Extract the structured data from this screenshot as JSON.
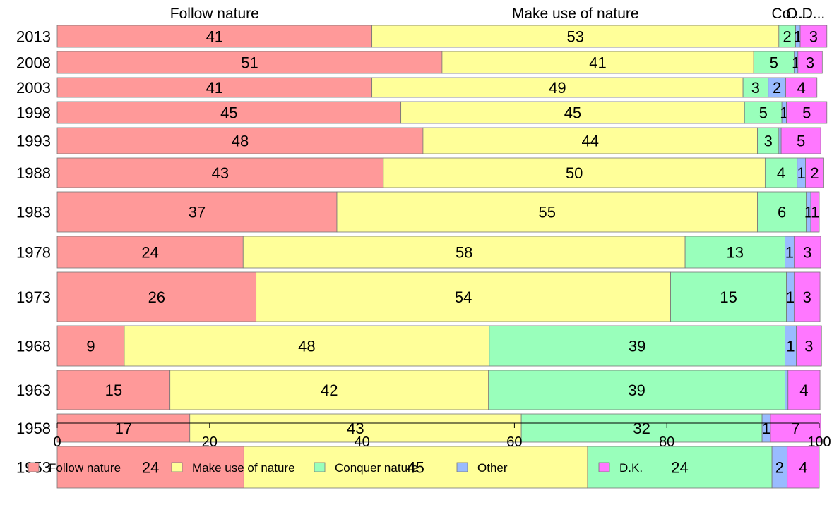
{
  "chart_data": {
    "type": "bar",
    "orientation": "horizontal",
    "stacked": true,
    "title": "",
    "xlabel": "",
    "ylabel": "",
    "xlim": [
      0,
      100
    ],
    "x_ticks": [
      "0",
      "20",
      "40",
      "60",
      "80",
      "100"
    ],
    "top_labels": [
      "Follow nature",
      "Make use of nature",
      "Co...",
      "O...",
      "D..."
    ],
    "categories": [
      "2013",
      "2008",
      "2003",
      "1998",
      "1993",
      "1988",
      "1983",
      "1978",
      "1973",
      "1968",
      "1963",
      "1958",
      "1953"
    ],
    "bar_heights": [
      31,
      31,
      28,
      31,
      37,
      42,
      57,
      45,
      70,
      57,
      56,
      40,
      59
    ],
    "series": [
      {
        "name": "Follow nature",
        "color": "#ff9999",
        "values": [
          41.3,
          50.5,
          41.3,
          45.1,
          48.0,
          42.8,
          36.7,
          24.4,
          26.1,
          8.8,
          14.8,
          17.4,
          24.5
        ]
      },
      {
        "name": "Make use of nature",
        "color": "#ffff99",
        "values": [
          53.4,
          40.9,
          48.7,
          45.1,
          43.9,
          50.1,
          55.2,
          58.0,
          54.4,
          47.9,
          41.8,
          43.5,
          45.1
        ]
      },
      {
        "name": "Conquer nature",
        "color": "#99ffbb",
        "values": [
          2.2,
          5.3,
          3.3,
          4.9,
          2.8,
          4.2,
          6.4,
          13.1,
          15.2,
          38.8,
          38.9,
          31.6,
          24.2
        ]
      },
      {
        "name": "Other",
        "color": "#99bbff",
        "values": [
          0.6,
          0.5,
          2.3,
          0.6,
          0.3,
          1.1,
          0.6,
          1.2,
          1.0,
          1.5,
          0.4,
          1.1,
          2.0
        ]
      },
      {
        "name": "D.K.",
        "color": "#ff77ff",
        "values": [
          3.5,
          3.2,
          4.1,
          5.3,
          5.2,
          2.4,
          1.1,
          3.5,
          3.4,
          3.3,
          4.2,
          6.6,
          4.2
        ]
      }
    ],
    "value_labels": [
      [
        "41",
        "53",
        "2",
        "1",
        "3"
      ],
      [
        "51",
        "41",
        "5",
        "1",
        "3"
      ],
      [
        "41",
        "49",
        "3",
        "2",
        "4"
      ],
      [
        "45",
        "45",
        "5",
        "1",
        "5"
      ],
      [
        "48",
        "44",
        "3",
        "",
        "5"
      ],
      [
        "43",
        "50",
        "4",
        "1",
        "2"
      ],
      [
        "37",
        "55",
        "6",
        "1",
        "1"
      ],
      [
        "24",
        "58",
        "13",
        "1",
        "3"
      ],
      [
        "26",
        "54",
        "15",
        "1",
        "3"
      ],
      [
        "9",
        "48",
        "39",
        "1",
        "3"
      ],
      [
        "15",
        "42",
        "39",
        "",
        "4"
      ],
      [
        "17",
        "43",
        "32",
        "1",
        "7"
      ],
      [
        "24",
        "45",
        "24",
        "2",
        "4"
      ]
    ],
    "grid": false,
    "legend_position": "bottom"
  }
}
